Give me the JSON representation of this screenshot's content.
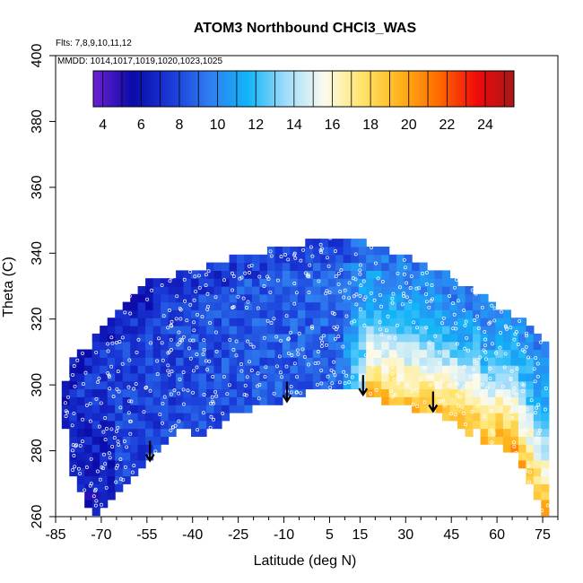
{
  "chart_data": {
    "type": "heatmap",
    "title": "ATOM3 Northbound CHCl3_WAS",
    "flights_note": "Flts: 7,8,9,10,11,12",
    "dates_note": "MMDD: 1014,1017,1019,1020,1023,1025",
    "xlabel": "Latitude (deg N)",
    "ylabel": "Theta (C)",
    "xlim": [
      -85,
      80
    ],
    "ylim": [
      260,
      400
    ],
    "x_ticks": [
      -85,
      -70,
      -55,
      -40,
      -25,
      -10,
      5,
      15,
      30,
      45,
      60,
      75
    ],
    "y_ticks": [
      260,
      280,
      300,
      320,
      340,
      360,
      380,
      400
    ],
    "colorbar": {
      "range": [
        3.5,
        25.5
      ],
      "tick_values": [
        4,
        6,
        8,
        10,
        12,
        14,
        16,
        18,
        20,
        22,
        24
      ],
      "colors": [
        "#6a1fd0",
        "#0a0aa8",
        "#1a3ad8",
        "#2f7ef0",
        "#12b4f8",
        "#9fdcfa",
        "#fbfbef",
        "#ffe46a",
        "#ffb21a",
        "#ff6a00",
        "#ef0a0a",
        "#a51919"
      ]
    },
    "upper_boundary": [
      [
        -82,
        301
      ],
      [
        -79,
        308
      ],
      [
        -74,
        312
      ],
      [
        -69,
        318
      ],
      [
        -62,
        326
      ],
      [
        -55,
        331
      ],
      [
        -45,
        334
      ],
      [
        -35,
        336
      ],
      [
        -25,
        339
      ],
      [
        -15,
        341
      ],
      [
        -5,
        343
      ],
      [
        0,
        344
      ],
      [
        5,
        345
      ],
      [
        10,
        345
      ],
      [
        15,
        344
      ],
      [
        25,
        341
      ],
      [
        35,
        337
      ],
      [
        45,
        333
      ],
      [
        55,
        327
      ],
      [
        65,
        321
      ],
      [
        72,
        318
      ],
      [
        78,
        311
      ]
    ],
    "lower_boundary": [
      [
        78,
        260
      ],
      [
        75,
        261
      ],
      [
        70,
        271
      ],
      [
        65,
        282
      ],
      [
        62,
        278
      ],
      [
        60,
        284
      ],
      [
        57,
        279
      ],
      [
        54,
        287
      ],
      [
        50,
        285
      ],
      [
        45,
        289
      ],
      [
        40,
        291
      ],
      [
        30,
        293
      ],
      [
        20,
        296
      ],
      [
        13,
        299
      ],
      [
        5,
        299
      ],
      [
        -5,
        297
      ],
      [
        -15,
        294
      ],
      [
        -25,
        292
      ],
      [
        -30,
        289
      ],
      [
        -35,
        285
      ],
      [
        -45,
        286
      ],
      [
        -55,
        277
      ],
      [
        -65,
        268
      ],
      [
        -72,
        261
      ],
      [
        -75,
        264
      ],
      [
        -78,
        269
      ],
      [
        -81,
        278
      ],
      [
        -82,
        290
      ]
    ],
    "arrows": [
      [
        -54,
        283
      ],
      [
        -9,
        301
      ],
      [
        16,
        303
      ],
      [
        39,
        298
      ]
    ]
  }
}
